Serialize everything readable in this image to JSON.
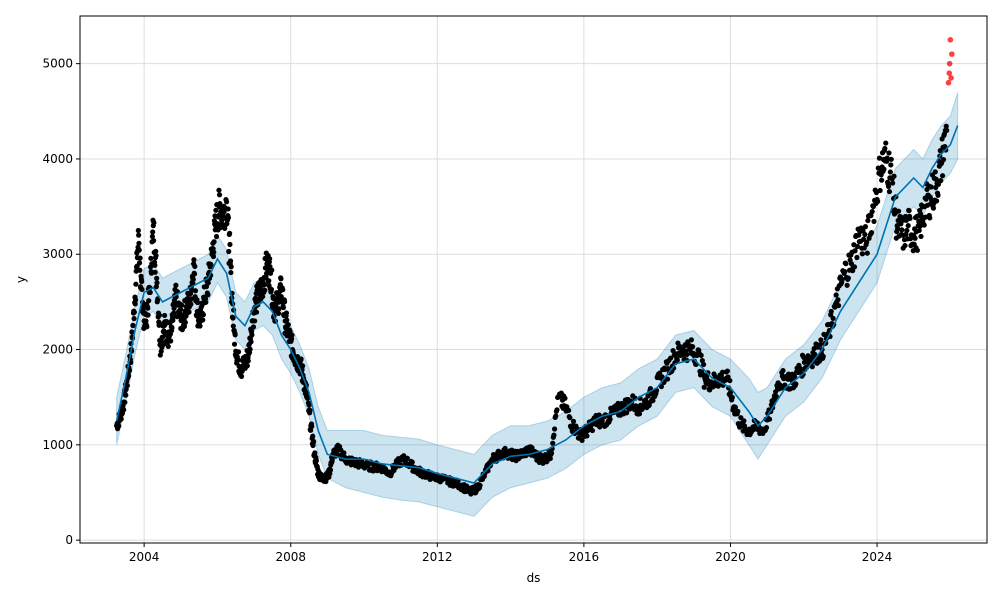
{
  "chart_data": {
    "type": "line",
    "xlabel": "ds",
    "ylabel": "y",
    "xlim": [
      2002.25,
      2027.0
    ],
    "ylim": [
      -30,
      5500
    ],
    "x_ticks": [
      2004,
      2008,
      2012,
      2016,
      2020,
      2024
    ],
    "x_tick_labels": [
      "2004",
      "2008",
      "2012",
      "2016",
      "2020",
      "2024"
    ],
    "y_ticks": [
      0,
      1000,
      2000,
      3000,
      4000,
      5000
    ],
    "y_tick_labels": [
      "0",
      "1000",
      "2000",
      "3000",
      "4000",
      "5000"
    ],
    "grid": true,
    "colors": {
      "observed": "#000000",
      "forecast_line": "#0072B2",
      "uncertainty_band": "#0072B2",
      "highlight_points": "#ff0000",
      "grid": "#dddddd",
      "axes": "#000000"
    },
    "forecast": {
      "x": [
        2003.25,
        2003.5,
        2003.75,
        2004.0,
        2004.25,
        2004.5,
        2004.75,
        2005.0,
        2005.25,
        2005.5,
        2005.75,
        2006.0,
        2006.25,
        2006.5,
        2006.75,
        2007.0,
        2007.25,
        2007.5,
        2007.75,
        2008.0,
        2008.25,
        2008.5,
        2008.75,
        2009.0,
        2009.5,
        2010.0,
        2010.5,
        2011.0,
        2011.5,
        2012.0,
        2012.5,
        2013.0,
        2013.5,
        2014.0,
        2014.5,
        2015.0,
        2015.5,
        2016.0,
        2016.5,
        2017.0,
        2017.5,
        2018.0,
        2018.5,
        2019.0,
        2019.5,
        2020.0,
        2020.5,
        2020.75,
        2021.0,
        2021.5,
        2022.0,
        2022.5,
        2023.0,
        2023.5,
        2024.0,
        2024.25,
        2024.5,
        2024.75,
        2025.0,
        2025.25,
        2025.5,
        2025.75,
        2026.0,
        2026.2
      ],
      "yhat": [
        1250,
        1700,
        2200,
        2600,
        2650,
        2500,
        2550,
        2600,
        2650,
        2700,
        2750,
        2950,
        2800,
        2350,
        2250,
        2450,
        2500,
        2400,
        2150,
        2000,
        1800,
        1550,
        1150,
        900,
        850,
        850,
        800,
        780,
        760,
        700,
        650,
        600,
        800,
        880,
        900,
        950,
        1050,
        1200,
        1300,
        1350,
        1500,
        1600,
        1850,
        1900,
        1700,
        1600,
        1350,
        1200,
        1300,
        1600,
        1750,
        2000,
        2400,
        2700,
        3000,
        3300,
        3600,
        3700,
        3800,
        3700,
        3900,
        4050,
        4150,
        4350
      ],
      "lower": [
        1000,
        1450,
        1950,
        2350,
        2400,
        2250,
        2300,
        2350,
        2400,
        2450,
        2500,
        2700,
        2550,
        2100,
        2000,
        2200,
        2250,
        2150,
        1900,
        1750,
        1550,
        1300,
        900,
        650,
        550,
        500,
        450,
        420,
        400,
        350,
        300,
        250,
        450,
        550,
        600,
        650,
        750,
        900,
        1000,
        1050,
        1200,
        1300,
        1550,
        1600,
        1400,
        1300,
        1000,
        850,
        1000,
        1300,
        1450,
        1700,
        2100,
        2400,
        2700,
        3000,
        3300,
        3400,
        3500,
        3400,
        3600,
        3750,
        3850,
        4000
      ],
      "upper": [
        1500,
        1950,
        2450,
        2850,
        2900,
        2750,
        2800,
        2850,
        2900,
        2950,
        3000,
        3200,
        3050,
        2600,
        2500,
        2700,
        2750,
        2650,
        2400,
        2250,
        2050,
        1800,
        1400,
        1150,
        1150,
        1150,
        1100,
        1080,
        1060,
        1000,
        950,
        900,
        1100,
        1200,
        1200,
        1250,
        1350,
        1500,
        1600,
        1650,
        1800,
        1900,
        2150,
        2200,
        2000,
        1900,
        1700,
        1550,
        1600,
        1900,
        2050,
        2300,
        2700,
        3000,
        3300,
        3600,
        3900,
        4000,
        4100,
        4000,
        4200,
        4350,
        4450,
        4700
      ]
    },
    "observed": {
      "x": [
        2003.25,
        2003.35,
        2003.45,
        2003.55,
        2003.65,
        2003.75,
        2003.85,
        2003.95,
        2004.05,
        2004.15,
        2004.25,
        2004.35,
        2004.45,
        2004.55,
        2004.65,
        2004.75,
        2004.85,
        2004.95,
        2005.05,
        2005.15,
        2005.25,
        2005.35,
        2005.45,
        2005.55,
        2005.65,
        2005.75,
        2005.85,
        2005.95,
        2006.05,
        2006.15,
        2006.25,
        2006.35,
        2006.45,
        2006.55,
        2006.65,
        2006.75,
        2006.85,
        2006.95,
        2007.05,
        2007.15,
        2007.25,
        2007.35,
        2007.45,
        2007.55,
        2007.65,
        2007.75,
        2007.85,
        2007.95,
        2008.05,
        2008.15,
        2008.25,
        2008.35,
        2008.45,
        2008.55,
        2008.65,
        2008.75,
        2008.85,
        2008.95,
        2009.05,
        2009.15,
        2009.3,
        2009.5,
        2009.7,
        2009.9,
        2010.1,
        2010.3,
        2010.5,
        2010.7,
        2010.9,
        2011.1,
        2011.3,
        2011.5,
        2011.7,
        2011.9,
        2012.1,
        2012.3,
        2012.5,
        2012.7,
        2012.9,
        2013.1,
        2013.3,
        2013.5,
        2013.7,
        2013.9,
        2014.1,
        2014.3,
        2014.5,
        2014.7,
        2014.9,
        2015.1,
        2015.3,
        2015.5,
        2015.7,
        2015.9,
        2016.1,
        2016.3,
        2016.5,
        2016.7,
        2016.9,
        2017.1,
        2017.3,
        2017.5,
        2017.7,
        2017.9,
        2018.1,
        2018.3,
        2018.5,
        2018.7,
        2018.9,
        2019.1,
        2019.3,
        2019.5,
        2019.7,
        2019.9,
        2020.1,
        2020.3,
        2020.5,
        2020.7,
        2020.9,
        2021.1,
        2021.3,
        2021.5,
        2021.7,
        2021.9,
        2022.1,
        2022.3,
        2022.5,
        2022.7,
        2022.9,
        2023.1,
        2023.3,
        2023.5,
        2023.7,
        2023.9,
        2024.1,
        2024.25,
        2024.4,
        2024.55,
        2024.7,
        2024.85,
        2025.0,
        2025.15,
        2025.3,
        2025.45,
        2025.6,
        2025.75,
        2025.9
      ],
      "y": [
        1200,
        1300,
        1450,
        1700,
        2000,
        2550,
        3200,
        2400,
        2300,
        2600,
        3300,
        2700,
        2050,
        2250,
        2150,
        2200,
        2550,
        2400,
        2300,
        2450,
        2500,
        2900,
        2400,
        2300,
        2550,
        2700,
        3000,
        3300,
        3500,
        3400,
        3550,
        2900,
        2200,
        1900,
        1800,
        1850,
        1950,
        2300,
        2500,
        2600,
        2700,
        2900,
        2800,
        2400,
        2500,
        2650,
        2300,
        2150,
        2000,
        1900,
        1850,
        1700,
        1500,
        1200,
        900,
        700,
        650,
        650,
        700,
        900,
        950,
        850,
        820,
        800,
        780,
        770,
        760,
        700,
        800,
        850,
        780,
        720,
        690,
        660,
        650,
        620,
        600,
        560,
        500,
        550,
        700,
        850,
        900,
        920,
        880,
        900,
        950,
        880,
        850,
        900,
        1500,
        1400,
        1200,
        1100,
        1150,
        1250,
        1250,
        1300,
        1350,
        1400,
        1450,
        1400,
        1450,
        1550,
        1700,
        1800,
        1950,
        2000,
        2000,
        1950,
        1700,
        1650,
        1700,
        1700,
        1400,
        1200,
        1150,
        1200,
        1150,
        1350,
        1650,
        1700,
        1650,
        1800,
        1900,
        1950,
        2000,
        2200,
        2500,
        2800,
        2900,
        3200,
        3100,
        3500,
        3900,
        4000,
        3800,
        3300,
        3200,
        3300,
        3200,
        3250,
        3500,
        3600,
        3700,
        3950,
        4300
      ]
    },
    "highlight": {
      "x": [
        2025.95,
        2025.97,
        2025.98,
        2026.0,
        2026.02,
        2026.04
      ],
      "y": [
        4800,
        4900,
        5000,
        5250,
        4850,
        5100
      ]
    }
  }
}
